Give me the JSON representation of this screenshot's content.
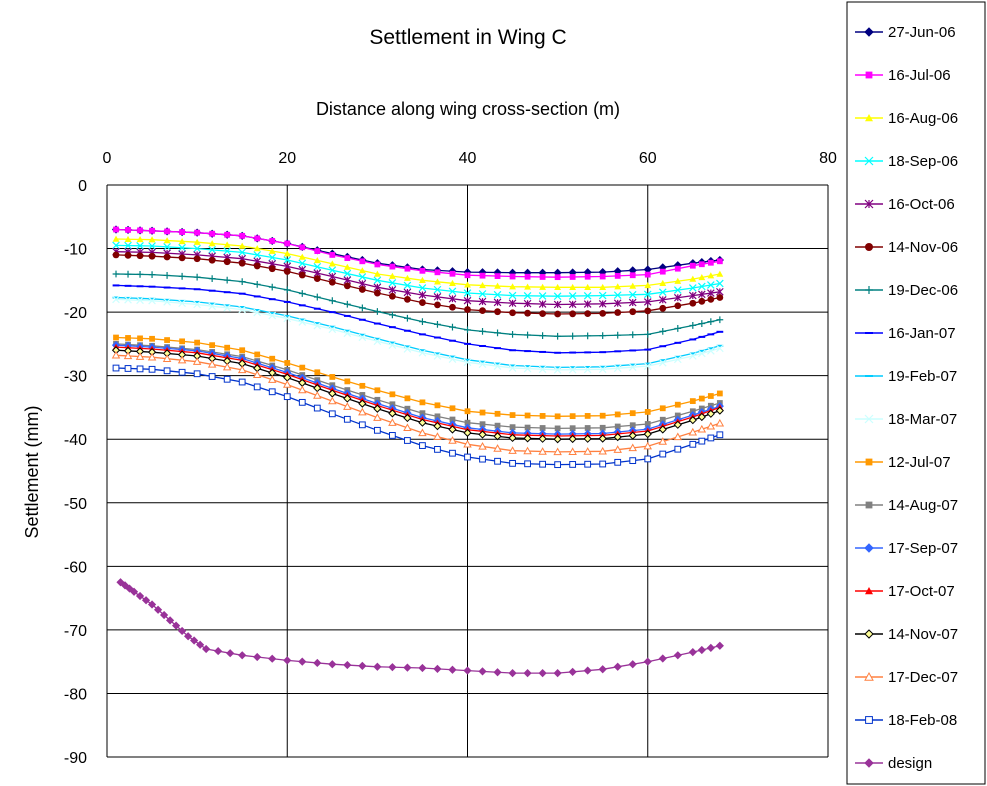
{
  "chart_data": {
    "type": "line",
    "title": "Settlement in Wing C",
    "xlabel": "Distance along wing cross-section (m)",
    "ylabel": "Settlement (mm)",
    "xlim": [
      0,
      80
    ],
    "ylim": [
      -90,
      0
    ],
    "x_ticks": [
      "0",
      "20",
      "40",
      "60",
      "80"
    ],
    "y_ticks": [
      "0",
      "-10",
      "-20",
      "-30",
      "-40",
      "-50",
      "-60",
      "-70",
      "-80",
      "-90"
    ],
    "x_axis_position": "top",
    "y_axis_reversed_downward": true,
    "grid": true,
    "legend_position": "right",
    "series": [
      {
        "name": "27-Jun-06",
        "color": "#000080",
        "marker": "diamond",
        "x": [
          1,
          5,
          10,
          15,
          20,
          25,
          30,
          35,
          40,
          45,
          50,
          55,
          60,
          65,
          68
        ],
        "y": [
          -7,
          -7.2,
          -7.5,
          -8,
          -9.2,
          -10.8,
          -12.3,
          -13.3,
          -13.7,
          -13.8,
          -13.8,
          -13.7,
          -13.3,
          -12.3,
          -11.8
        ]
      },
      {
        "name": "16-Jul-06",
        "color": "#FF00FF",
        "marker": "square",
        "x": [
          1,
          5,
          10,
          15,
          20,
          25,
          30,
          35,
          40,
          45,
          50,
          55,
          60,
          65,
          68
        ],
        "y": [
          -7,
          -7.2,
          -7.5,
          -8,
          -9.2,
          -11,
          -12.5,
          -13.5,
          -14.2,
          -14.4,
          -14.5,
          -14.4,
          -14.1,
          -12.7,
          -12
        ]
      },
      {
        "name": "16-Aug-06",
        "color": "#FFFF00",
        "marker": "triangle",
        "x": [
          1,
          5,
          10,
          15,
          20,
          25,
          30,
          35,
          40,
          45,
          50,
          55,
          60,
          65,
          68
        ],
        "y": [
          -8.5,
          -8.6,
          -9,
          -9.6,
          -10.8,
          -12.4,
          -14,
          -15,
          -15.7,
          -16,
          -16.1,
          -16.1,
          -15.8,
          -14.8,
          -14
        ]
      },
      {
        "name": "18-Sep-06",
        "color": "#00FFFF",
        "marker": "x",
        "x": [
          1,
          5,
          10,
          15,
          20,
          25,
          30,
          35,
          40,
          45,
          50,
          55,
          60,
          65,
          68
        ],
        "y": [
          -9.5,
          -9.6,
          -10,
          -10.6,
          -11.8,
          -13.4,
          -15,
          -16.2,
          -17,
          -17.4,
          -17.5,
          -17.4,
          -17.2,
          -16.2,
          -15.5
        ]
      },
      {
        "name": "16-Oct-06",
        "color": "#800080",
        "marker": "star",
        "x": [
          1,
          5,
          10,
          15,
          20,
          25,
          30,
          35,
          40,
          45,
          50,
          55,
          60,
          65,
          68
        ],
        "y": [
          -10.5,
          -10.6,
          -11,
          -11.6,
          -12.8,
          -14.4,
          -16.1,
          -17.3,
          -18.2,
          -18.6,
          -18.8,
          -18.7,
          -18.4,
          -17.4,
          -16.8
        ]
      },
      {
        "name": "14-Nov-06",
        "color": "#800000",
        "marker": "circle",
        "x": [
          1,
          5,
          10,
          15,
          20,
          25,
          30,
          35,
          40,
          45,
          50,
          55,
          60,
          65,
          68
        ],
        "y": [
          -11,
          -11.2,
          -11.6,
          -12.3,
          -13.6,
          -15.3,
          -17,
          -18.5,
          -19.6,
          -20.1,
          -20.3,
          -20.2,
          -19.8,
          -18.6,
          -17.7
        ]
      },
      {
        "name": "19-Dec-06",
        "color": "#008080",
        "marker": "plus",
        "x": [
          1,
          5,
          10,
          15,
          20,
          25,
          30,
          35,
          40,
          45,
          50,
          55,
          60,
          65,
          68
        ],
        "y": [
          -14,
          -14.1,
          -14.5,
          -15.2,
          -16.5,
          -18.2,
          -19.9,
          -21.5,
          -22.8,
          -23.5,
          -23.8,
          -23.7,
          -23.5,
          -22.1,
          -21.2
        ]
      },
      {
        "name": "16-Jan-07",
        "color": "#0000FF",
        "marker": "dash",
        "x": [
          1,
          5,
          10,
          15,
          20,
          25,
          30,
          35,
          40,
          45,
          50,
          55,
          60,
          65,
          68
        ],
        "y": [
          -15.8,
          -16,
          -16.4,
          -17.1,
          -18.4,
          -20,
          -21.8,
          -23.5,
          -25,
          -26,
          -26.4,
          -26.3,
          -25.9,
          -24.3,
          -23.1
        ]
      },
      {
        "name": "19-Feb-07",
        "color": "#00CCFF",
        "marker": "dash",
        "x": [
          1,
          5,
          10,
          15,
          20,
          25,
          30,
          35,
          40,
          45,
          50,
          55,
          60,
          65,
          68
        ],
        "y": [
          -17.7,
          -17.9,
          -18.4,
          -19.2,
          -20.6,
          -22.3,
          -24.2,
          -26,
          -27.5,
          -28.4,
          -28.7,
          -28.6,
          -28.1,
          -26.5,
          -25.3
        ]
      },
      {
        "name": "18-Mar-07",
        "color": "#CCFFFF",
        "marker": "x",
        "x": [
          1,
          5,
          10,
          15,
          20,
          25,
          30,
          35,
          40,
          45,
          50,
          55,
          60,
          65,
          68
        ],
        "y": [
          -18,
          -18.2,
          -18.8,
          -19.6,
          -21,
          -22.7,
          -24.6,
          -26.4,
          -27.9,
          -28.8,
          -29.1,
          -29,
          -28.5,
          -26.9,
          -25.7
        ]
      },
      {
        "name": "12-Jul-07",
        "color": "#FF9900",
        "marker": "square",
        "x": [
          1,
          5,
          10,
          15,
          20,
          25,
          30,
          35,
          40,
          45,
          50,
          55,
          60,
          65,
          68
        ],
        "y": [
          -24,
          -24.2,
          -24.8,
          -26,
          -28,
          -30.2,
          -32.3,
          -34.2,
          -35.6,
          -36.2,
          -36.4,
          -36.3,
          -35.7,
          -34,
          -32.8
        ]
      },
      {
        "name": "14-Aug-07",
        "color": "#808080",
        "marker": "square",
        "x": [
          1,
          5,
          10,
          15,
          20,
          25,
          30,
          35,
          40,
          45,
          50,
          55,
          60,
          65,
          68
        ],
        "y": [
          -25,
          -25.3,
          -25.9,
          -27,
          -29.1,
          -31.5,
          -33.8,
          -35.9,
          -37.4,
          -38.1,
          -38.3,
          -38.2,
          -37.6,
          -35.6,
          -34.3
        ]
      },
      {
        "name": "17-Sep-07",
        "color": "#3366FF",
        "marker": "diamond",
        "x": [
          1,
          5,
          10,
          15,
          20,
          25,
          30,
          35,
          40,
          45,
          50,
          55,
          60,
          65,
          68
        ],
        "y": [
          -25.2,
          -25.5,
          -26.1,
          -27.3,
          -29.5,
          -32,
          -34.4,
          -36.6,
          -38.2,
          -39,
          -39.2,
          -39.1,
          -38.4,
          -36.2,
          -34.8
        ]
      },
      {
        "name": "17-Oct-07",
        "color": "#FF0000",
        "marker": "triangle",
        "x": [
          1,
          5,
          10,
          15,
          20,
          25,
          30,
          35,
          40,
          45,
          50,
          55,
          60,
          65,
          68
        ],
        "y": [
          -25.5,
          -25.8,
          -26.4,
          -27.6,
          -29.8,
          -32.3,
          -34.7,
          -36.9,
          -38.5,
          -39.3,
          -39.5,
          -39.4,
          -38.7,
          -36.5,
          -35
        ]
      },
      {
        "name": "14-Nov-07",
        "color": "#000000",
        "marker": "diamond-open",
        "x": [
          1,
          5,
          10,
          15,
          20,
          25,
          30,
          35,
          40,
          45,
          50,
          55,
          60,
          65,
          68
        ],
        "y": [
          -26,
          -26.3,
          -26.9,
          -28.1,
          -30.3,
          -32.8,
          -35.2,
          -37.4,
          -39,
          -39.8,
          -40,
          -39.9,
          -39.2,
          -37,
          -35.5
        ]
      },
      {
        "name": "17-Dec-07",
        "color": "#FF8040",
        "marker": "triangle-open",
        "x": [
          1,
          5,
          10,
          15,
          20,
          25,
          30,
          35,
          40,
          45,
          50,
          55,
          60,
          65,
          68
        ],
        "y": [
          -26.8,
          -27.1,
          -27.8,
          -29.1,
          -31.4,
          -34,
          -36.6,
          -39,
          -40.8,
          -41.8,
          -42,
          -41.9,
          -41.1,
          -38.9,
          -37.5
        ]
      },
      {
        "name": "18-Feb-08",
        "color": "#0033CC",
        "marker": "square-open",
        "x": [
          1,
          5,
          10,
          15,
          20,
          25,
          30,
          35,
          40,
          45,
          50,
          55,
          60,
          65,
          68
        ],
        "y": [
          -28.8,
          -29,
          -29.7,
          -31,
          -33.3,
          -36,
          -38.6,
          -41,
          -42.8,
          -43.8,
          -44,
          -43.9,
          -43.1,
          -40.8,
          -39.3
        ]
      },
      {
        "name": "design",
        "color": "#993399",
        "marker": "diamond",
        "x": [
          1.5,
          3,
          5,
          7,
          9,
          11,
          15,
          20,
          25,
          30,
          35,
          40,
          45,
          50,
          55,
          60,
          65,
          68
        ],
        "y": [
          -62.5,
          -64,
          -66,
          -68.5,
          -71,
          -73,
          -74,
          -74.8,
          -75.4,
          -75.8,
          -76,
          -76.4,
          -76.8,
          -76.8,
          -76.2,
          -75,
          -73.5,
          -72.5
        ]
      }
    ]
  }
}
